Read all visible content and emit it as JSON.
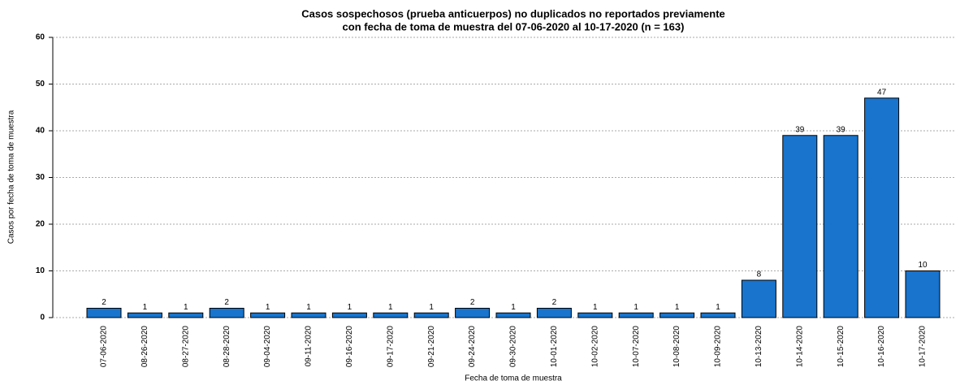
{
  "chart_data": {
    "type": "bar",
    "title": [
      "Casos sospechosos (prueba anticuerpos) no duplicados no reportados previamente",
      "con fecha de toma de muestra del 07-06-2020 al 10-17-2020 (n = 163)"
    ],
    "x_label": "Fecha de toma de muestra",
    "y_label": "Casos por fecha de toma de muestra",
    "categories": [
      "07-06-2020",
      "08-26-2020",
      "08-27-2020",
      "08-28-2020",
      "09-04-2020",
      "09-11-2020",
      "09-16-2020",
      "09-17-2020",
      "09-21-2020",
      "09-24-2020",
      "09-30-2020",
      "10-01-2020",
      "10-02-2020",
      "10-07-2020",
      "10-08-2020",
      "10-09-2020",
      "10-13-2020",
      "10-14-2020",
      "10-15-2020",
      "10-16-2020",
      "10-17-2020"
    ],
    "values": [
      2,
      1,
      1,
      2,
      1,
      1,
      1,
      1,
      1,
      2,
      1,
      2,
      1,
      1,
      1,
      1,
      8,
      39,
      39,
      47,
      10
    ],
    "color": "#1874cd",
    "ylim": [
      0,
      60
    ],
    "yticks": [
      0,
      10,
      20,
      30,
      40,
      50,
      60
    ],
    "grid": true
  }
}
